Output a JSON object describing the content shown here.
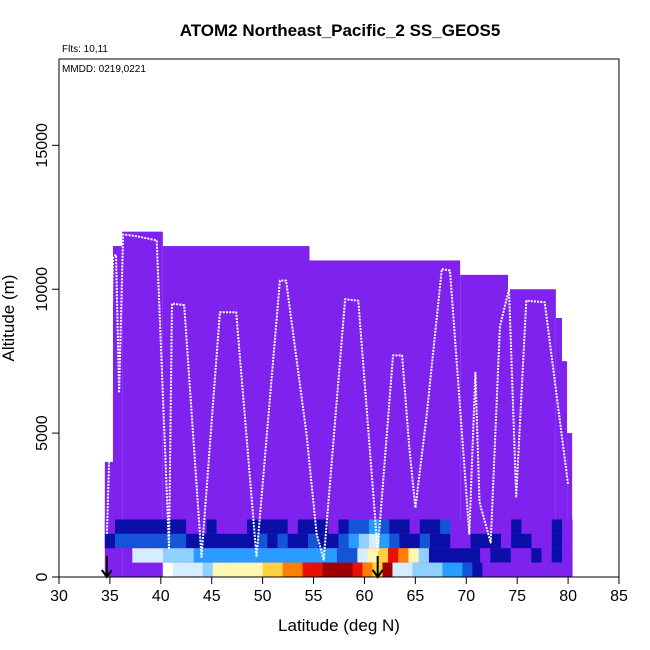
{
  "chart_data": {
    "type": "heatmap",
    "title": "ATOM2 Northeast_Pacific_2 SS_GEOS5",
    "flights_label": "Flts: 10,11",
    "dates_label": "MMDD: 0219,0221",
    "xlabel": "Latitude (deg N)",
    "ylabel": "Altitude (m)",
    "xlim": [
      30,
      85
    ],
    "ylim": [
      0,
      18000
    ],
    "x_ticks": [
      30,
      35,
      40,
      45,
      50,
      55,
      60,
      65,
      70,
      75,
      80,
      85
    ],
    "y_ticks": [
      0,
      5000,
      10000,
      15000
    ],
    "colors": {
      "background_field": "#7f22ee",
      "track": "#ffffff",
      "scale": [
        "#ffffff",
        "#d6ecff",
        "#8fd0ff",
        "#2a9cff",
        "#1455d8",
        "#0a0fa8",
        "#7f22ee",
        "#fff7b0",
        "#ffd040",
        "#ff8000",
        "#e81000",
        "#a00000"
      ]
    },
    "curtain_blocks": [
      {
        "x0": 34.5,
        "x1": 35.3,
        "alt": 4000
      },
      {
        "x0": 35.3,
        "x1": 36.2,
        "alt": 11500
      },
      {
        "x0": 36.2,
        "x1": 40.2,
        "alt": 12000
      },
      {
        "x0": 40.2,
        "x1": 54.6,
        "alt": 11500
      },
      {
        "x0": 54.6,
        "x1": 69.4,
        "alt": 11000
      },
      {
        "x0": 69.4,
        "x1": 74.1,
        "alt": 10500
      },
      {
        "x0": 74.1,
        "x1": 78.8,
        "alt": 10000
      },
      {
        "x0": 78.8,
        "x1": 79.4,
        "alt": 9000
      },
      {
        "x0": 79.4,
        "x1": 79.9,
        "alt": 7500
      },
      {
        "x0": 79.9,
        "x1": 80.4,
        "alt": 5000
      }
    ],
    "near_surface_layers": [
      {
        "alt0": 1500,
        "alt1": 2000,
        "x0": 34.5,
        "x1": 80.4,
        "cells": [
          6,
          5,
          5,
          5,
          5,
          5,
          5,
          5,
          6,
          6,
          5,
          6,
          6,
          6,
          5,
          5,
          5,
          5,
          6,
          5,
          5,
          5,
          6,
          5,
          4,
          4,
          3,
          4,
          5,
          5,
          6,
          5,
          5,
          4,
          6,
          6,
          6,
          6,
          6,
          6,
          5,
          6,
          6,
          6,
          5,
          6
        ]
      },
      {
        "alt0": 1000,
        "alt1": 1500,
        "x0": 34.5,
        "x1": 80.4,
        "cells": [
          5,
          4,
          4,
          4,
          4,
          4,
          4,
          4,
          5,
          5,
          5,
          5,
          5,
          5,
          5,
          4,
          5,
          4,
          5,
          5,
          4,
          5,
          5,
          4,
          3,
          2,
          1,
          3,
          4,
          5,
          5,
          4,
          5,
          5,
          6,
          6,
          5,
          5,
          5,
          6,
          5,
          5,
          6,
          6,
          5,
          6
        ]
      },
      {
        "alt0": 500,
        "alt1": 1000,
        "x0": 37.2,
        "x1": 80.4,
        "cells": [
          1,
          1,
          1,
          2,
          2,
          2,
          3,
          3,
          3,
          3,
          3,
          3,
          3,
          3,
          3,
          3,
          3,
          3,
          3,
          3,
          4,
          4,
          1,
          7,
          8,
          10,
          9,
          7,
          2,
          5,
          5,
          5,
          5,
          5,
          6,
          5,
          5,
          6,
          6,
          5,
          6,
          5,
          6
        ]
      },
      {
        "alt0": 0,
        "alt1": 500,
        "x0": 40.2,
        "x1": 80.4,
        "cells": [
          0,
          1,
          1,
          1,
          2,
          7,
          7,
          7,
          7,
          7,
          8,
          8,
          9,
          9,
          10,
          10,
          11,
          11,
          11,
          10,
          9,
          8,
          11,
          1,
          1,
          2,
          2,
          2,
          3,
          3,
          4,
          5,
          6,
          6,
          6,
          6,
          6,
          6,
          6,
          6,
          6
        ]
      }
    ],
    "flight_track": [
      [
        34.7,
        1500
      ],
      [
        34.9,
        3800
      ],
      [
        35.3,
        11100
      ],
      [
        35.6,
        11200
      ],
      [
        35.9,
        6400
      ],
      [
        36.3,
        11900
      ],
      [
        37.5,
        11850
      ],
      [
        39.6,
        11700
      ],
      [
        40.8,
        1000
      ],
      [
        41.1,
        9500
      ],
      [
        42.3,
        9450
      ],
      [
        44.0,
        700
      ],
      [
        45.8,
        9200
      ],
      [
        47.4,
        9200
      ],
      [
        49.4,
        700
      ],
      [
        51.7,
        10300
      ],
      [
        52.3,
        10300
      ],
      [
        54.3,
        5000
      ],
      [
        55.3,
        1500
      ],
      [
        56.0,
        600
      ],
      [
        58.1,
        9650
      ],
      [
        59.4,
        9600
      ],
      [
        61.3,
        900
      ],
      [
        62.8,
        7700
      ],
      [
        63.7,
        7700
      ],
      [
        64.4,
        4500
      ],
      [
        65.0,
        2400
      ],
      [
        66.1,
        5600
      ],
      [
        67.6,
        10700
      ],
      [
        68.4,
        10650
      ],
      [
        70.3,
        1500
      ],
      [
        70.9,
        7100
      ],
      [
        71.3,
        2600
      ],
      [
        72.4,
        1200
      ],
      [
        73.3,
        8700
      ],
      [
        74.2,
        10000
      ],
      [
        74.9,
        2800
      ],
      [
        75.9,
        9600
      ],
      [
        77.7,
        9550
      ],
      [
        80.0,
        3200
      ]
    ],
    "flight_markers": [
      34.7,
      61.3
    ]
  }
}
